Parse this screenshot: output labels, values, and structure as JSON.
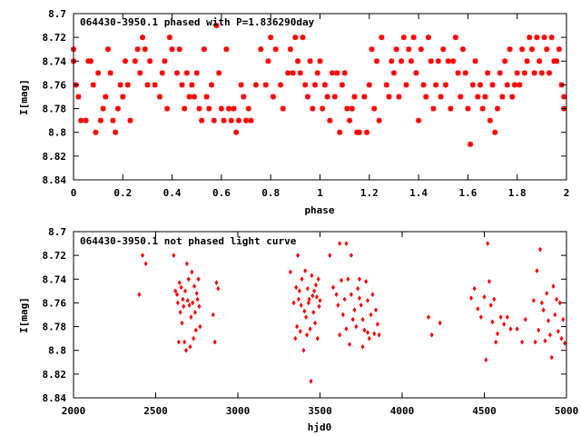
{
  "chart_data": [
    {
      "type": "scatter",
      "title": "064430-3950.1 phased with P=1.836290day",
      "xlabel": "phase",
      "ylabel": "I[mag]",
      "xlim": [
        0,
        2
      ],
      "ylim": [
        8.84,
        8.7
      ],
      "y_inverted": true,
      "xticks": [
        "0",
        "0.2",
        "0.4",
        "0.6",
        "0.8",
        "1",
        "1.2",
        "1.4",
        "1.6",
        "1.8",
        "2"
      ],
      "xtick_values": [
        0,
        0.2,
        0.4,
        0.6,
        0.8,
        1.0,
        1.2,
        1.4,
        1.6,
        1.8,
        2.0
      ],
      "yticks": [
        "8.7",
        "8.72",
        "8.74",
        "8.76",
        "8.78",
        "8.8",
        "8.82",
        "8.84"
      ],
      "ytick_values": [
        8.7,
        8.72,
        8.74,
        8.76,
        8.78,
        8.8,
        8.82,
        8.84
      ],
      "marker": "star",
      "color": "#ff0000",
      "points": [
        [
          0.0,
          8.73
        ],
        [
          0.0,
          8.74
        ],
        [
          0.01,
          8.76
        ],
        [
          0.02,
          8.77
        ],
        [
          0.03,
          8.79
        ],
        [
          0.05,
          8.79
        ],
        [
          0.06,
          8.74
        ],
        [
          0.07,
          8.74
        ],
        [
          0.08,
          8.76
        ],
        [
          0.09,
          8.8
        ],
        [
          0.1,
          8.75
        ],
        [
          0.11,
          8.79
        ],
        [
          0.12,
          8.78
        ],
        [
          0.13,
          8.77
        ],
        [
          0.14,
          8.73
        ],
        [
          0.15,
          8.75
        ],
        [
          0.16,
          8.79
        ],
        [
          0.17,
          8.8
        ],
        [
          0.18,
          8.78
        ],
        [
          0.19,
          8.76
        ],
        [
          0.2,
          8.77
        ],
        [
          0.21,
          8.74
        ],
        [
          0.22,
          8.76
        ],
        [
          0.23,
          8.79
        ],
        [
          0.25,
          8.74
        ],
        [
          0.26,
          8.73
        ],
        [
          0.27,
          8.75
        ],
        [
          0.28,
          8.72
        ],
        [
          0.29,
          8.73
        ],
        [
          0.3,
          8.76
        ],
        [
          0.31,
          8.74
        ],
        [
          0.33,
          8.76
        ],
        [
          0.35,
          8.77
        ],
        [
          0.36,
          8.75
        ],
        [
          0.37,
          8.74
        ],
        [
          0.38,
          8.78
        ],
        [
          0.39,
          8.72
        ],
        [
          0.4,
          8.73
        ],
        [
          0.42,
          8.75
        ],
        [
          0.43,
          8.73
        ],
        [
          0.44,
          8.76
        ],
        [
          0.45,
          8.78
        ],
        [
          0.46,
          8.75
        ],
        [
          0.47,
          8.77
        ],
        [
          0.48,
          8.76
        ],
        [
          0.49,
          8.77
        ],
        [
          0.5,
          8.75
        ],
        [
          0.51,
          8.78
        ],
        [
          0.52,
          8.79
        ],
        [
          0.53,
          8.73
        ],
        [
          0.54,
          8.77
        ],
        [
          0.55,
          8.78
        ],
        [
          0.56,
          8.76
        ],
        [
          0.57,
          8.79
        ],
        [
          0.58,
          8.71
        ],
        [
          0.59,
          8.75
        ],
        [
          0.6,
          8.78
        ],
        [
          0.61,
          8.79
        ],
        [
          0.62,
          8.73
        ],
        [
          0.63,
          8.78
        ],
        [
          0.64,
          8.79
        ],
        [
          0.65,
          8.78
        ],
        [
          0.66,
          8.8
        ],
        [
          0.67,
          8.79
        ],
        [
          0.68,
          8.76
        ],
        [
          0.69,
          8.77
        ],
        [
          0.7,
          8.79
        ],
        [
          0.71,
          8.78
        ],
        [
          0.72,
          8.79
        ],
        [
          0.74,
          8.76
        ],
        [
          0.76,
          8.73
        ],
        [
          0.78,
          8.76
        ],
        [
          0.79,
          8.74
        ],
        [
          0.8,
          8.72
        ],
        [
          0.81,
          8.77
        ],
        [
          0.82,
          8.73
        ],
        [
          0.84,
          8.76
        ],
        [
          0.85,
          8.78
        ],
        [
          0.87,
          8.75
        ],
        [
          0.88,
          8.73
        ],
        [
          0.89,
          8.75
        ],
        [
          0.9,
          8.72
        ],
        [
          0.91,
          8.74
        ],
        [
          0.92,
          8.75
        ],
        [
          0.93,
          8.72
        ],
        [
          0.94,
          8.76
        ],
        [
          0.95,
          8.77
        ],
        [
          0.96,
          8.74
        ],
        [
          0.97,
          8.78
        ],
        [
          0.98,
          8.76
        ],
        [
          0.99,
          8.75
        ],
        [
          1.0,
          8.74
        ],
        [
          1.01,
          8.78
        ],
        [
          1.02,
          8.76
        ],
        [
          1.03,
          8.77
        ],
        [
          1.04,
          8.79
        ],
        [
          1.05,
          8.75
        ],
        [
          1.06,
          8.77
        ],
        [
          1.07,
          8.75
        ],
        [
          1.08,
          8.8
        ],
        [
          1.09,
          8.76
        ],
        [
          1.1,
          8.75
        ],
        [
          1.11,
          8.78
        ],
        [
          1.12,
          8.79
        ],
        [
          1.13,
          8.78
        ],
        [
          1.14,
          8.77
        ],
        [
          1.15,
          8.8
        ],
        [
          1.16,
          8.8
        ],
        [
          1.18,
          8.77
        ],
        [
          1.19,
          8.8
        ],
        [
          1.2,
          8.76
        ],
        [
          1.21,
          8.73
        ],
        [
          1.22,
          8.78
        ],
        [
          1.23,
          8.74
        ],
        [
          1.24,
          8.79
        ],
        [
          1.25,
          8.72
        ],
        [
          1.27,
          8.76
        ],
        [
          1.28,
          8.77
        ],
        [
          1.29,
          8.74
        ],
        [
          1.3,
          8.75
        ],
        [
          1.31,
          8.73
        ],
        [
          1.32,
          8.77
        ],
        [
          1.33,
          8.74
        ],
        [
          1.34,
          8.72
        ],
        [
          1.35,
          8.76
        ],
        [
          1.36,
          8.73
        ],
        [
          1.37,
          8.74
        ],
        [
          1.38,
          8.72
        ],
        [
          1.39,
          8.75
        ],
        [
          1.4,
          8.79
        ],
        [
          1.41,
          8.73
        ],
        [
          1.42,
          8.76
        ],
        [
          1.43,
          8.77
        ],
        [
          1.44,
          8.72
        ],
        [
          1.45,
          8.74
        ],
        [
          1.46,
          8.78
        ],
        [
          1.47,
          8.76
        ],
        [
          1.48,
          8.74
        ],
        [
          1.49,
          8.77
        ],
        [
          1.5,
          8.73
        ],
        [
          1.51,
          8.76
        ],
        [
          1.52,
          8.74
        ],
        [
          1.53,
          8.78
        ],
        [
          1.54,
          8.74
        ],
        [
          1.55,
          8.72
        ],
        [
          1.56,
          8.75
        ],
        [
          1.57,
          8.77
        ],
        [
          1.58,
          8.73
        ],
        [
          1.59,
          8.75
        ],
        [
          1.6,
          8.78
        ],
        [
          1.61,
          8.81
        ],
        [
          1.62,
          8.76
        ],
        [
          1.63,
          8.74
        ],
        [
          1.64,
          8.77
        ],
        [
          1.65,
          8.76
        ],
        [
          1.66,
          8.78
        ],
        [
          1.67,
          8.77
        ],
        [
          1.68,
          8.75
        ],
        [
          1.69,
          8.79
        ],
        [
          1.7,
          8.76
        ],
        [
          1.71,
          8.8
        ],
        [
          1.72,
          8.78
        ],
        [
          1.73,
          8.75
        ],
        [
          1.74,
          8.77
        ],
        [
          1.75,
          8.74
        ],
        [
          1.76,
          8.76
        ],
        [
          1.77,
          8.73
        ],
        [
          1.78,
          8.77
        ],
        [
          1.79,
          8.76
        ],
        [
          1.8,
          8.75
        ],
        [
          1.81,
          8.76
        ],
        [
          1.82,
          8.73
        ],
        [
          1.83,
          8.75
        ],
        [
          1.84,
          8.74
        ],
        [
          1.85,
          8.72
        ],
        [
          1.86,
          8.73
        ],
        [
          1.87,
          8.75
        ],
        [
          1.88,
          8.72
        ],
        [
          1.89,
          8.74
        ],
        [
          1.9,
          8.75
        ],
        [
          1.91,
          8.72
        ],
        [
          1.92,
          8.73
        ],
        [
          1.93,
          8.75
        ],
        [
          1.94,
          8.72
        ],
        [
          1.95,
          8.74
        ],
        [
          1.96,
          8.74
        ],
        [
          1.97,
          8.73
        ],
        [
          1.98,
          8.76
        ],
        [
          1.99,
          8.77
        ],
        [
          1.99,
          8.78
        ]
      ]
    },
    {
      "type": "scatter",
      "title": "064430-3950.1 not phased light curve",
      "xlabel": "hjd0",
      "ylabel": "I[mag]",
      "xlim": [
        2000,
        5000
      ],
      "ylim": [
        8.84,
        8.7
      ],
      "y_inverted": true,
      "xticks": [
        "2000",
        "2500",
        "3000",
        "3500",
        "4000",
        "4500",
        "5000"
      ],
      "xtick_values": [
        2000,
        2500,
        3000,
        3500,
        4000,
        4500,
        5000
      ],
      "yticks": [
        "8.7",
        "8.72",
        "8.74",
        "8.76",
        "8.78",
        "8.8",
        "8.82",
        "8.84"
      ],
      "ytick_values": [
        8.7,
        8.72,
        8.74,
        8.76,
        8.78,
        8.8,
        8.82,
        8.84
      ],
      "marker": "diamond",
      "color": "#ff0000",
      "points": [
        [
          2400,
          8.753
        ],
        [
          2420,
          8.72
        ],
        [
          2440,
          8.727
        ],
        [
          2610,
          8.72
        ],
        [
          2620,
          8.75
        ],
        [
          2630,
          8.753
        ],
        [
          2635,
          8.76
        ],
        [
          2640,
          8.793
        ],
        [
          2645,
          8.743
        ],
        [
          2650,
          8.768
        ],
        [
          2655,
          8.747
        ],
        [
          2660,
          8.777
        ],
        [
          2665,
          8.757
        ],
        [
          2670,
          8.763
        ],
        [
          2675,
          8.793
        ],
        [
          2680,
          8.75
        ],
        [
          2685,
          8.8
        ],
        [
          2690,
          8.727
        ],
        [
          2695,
          8.758
        ],
        [
          2700,
          8.74
        ],
        [
          2705,
          8.762
        ],
        [
          2710,
          8.797
        ],
        [
          2715,
          8.772
        ],
        [
          2720,
          8.734
        ],
        [
          2725,
          8.76
        ],
        [
          2730,
          8.79
        ],
        [
          2735,
          8.746
        ],
        [
          2740,
          8.768
        ],
        [
          2745,
          8.783
        ],
        [
          2750,
          8.752
        ],
        [
          2755,
          8.757
        ],
        [
          2760,
          8.74
        ],
        [
          2765,
          8.763
        ],
        [
          2770,
          8.78
        ],
        [
          2850,
          8.77
        ],
        [
          2860,
          8.793
        ],
        [
          2870,
          8.743
        ],
        [
          2880,
          8.748
        ],
        [
          3320,
          8.734
        ],
        [
          3340,
          8.76
        ],
        [
          3350,
          8.79
        ],
        [
          3355,
          8.747
        ],
        [
          3360,
          8.78
        ],
        [
          3365,
          8.72
        ],
        [
          3370,
          8.757
        ],
        [
          3375,
          8.75
        ],
        [
          3380,
          8.784
        ],
        [
          3385,
          8.762
        ],
        [
          3390,
          8.74
        ],
        [
          3400,
          8.8
        ],
        [
          3405,
          8.767
        ],
        [
          3410,
          8.733
        ],
        [
          3415,
          8.772
        ],
        [
          3420,
          8.787
        ],
        [
          3425,
          8.748
        ],
        [
          3430,
          8.76
        ],
        [
          3435,
          8.757
        ],
        [
          3440,
          8.782
        ],
        [
          3445,
          8.826
        ],
        [
          3450,
          8.737
        ],
        [
          3455,
          8.754
        ],
        [
          3460,
          8.768
        ],
        [
          3465,
          8.75
        ],
        [
          3470,
          8.777
        ],
        [
          3475,
          8.745
        ],
        [
          3480,
          8.755
        ],
        [
          3485,
          8.79
        ],
        [
          3490,
          8.74
        ],
        [
          3495,
          8.763
        ],
        [
          3500,
          8.758
        ],
        [
          3560,
          8.72
        ],
        [
          3580,
          8.747
        ],
        [
          3600,
          8.753
        ],
        [
          3610,
          8.762
        ],
        [
          3620,
          8.787
        ],
        [
          3630,
          8.741
        ],
        [
          3640,
          8.77
        ],
        [
          3650,
          8.757
        ],
        [
          3660,
          8.782
        ],
        [
          3670,
          8.74
        ],
        [
          3680,
          8.795
        ],
        [
          3690,
          8.753
        ],
        [
          3700,
          8.774
        ],
        [
          3710,
          8.766
        ],
        [
          3720,
          8.78
        ],
        [
          3730,
          8.748
        ],
        [
          3740,
          8.756
        ],
        [
          3750,
          8.762
        ],
        [
          3760,
          8.774
        ],
        [
          3770,
          8.783
        ],
        [
          3780,
          8.742
        ],
        [
          3790,
          8.758
        ],
        [
          3800,
          8.79
        ],
        [
          3810,
          8.77
        ],
        [
          3820,
          8.753
        ],
        [
          3830,
          8.786
        ],
        [
          3840,
          8.766
        ],
        [
          3850,
          8.778
        ],
        [
          3860,
          8.787
        ],
        [
          3620,
          8.71
        ],
        [
          3660,
          8.71
        ],
        [
          3690,
          8.72
        ],
        [
          3740,
          8.74
        ],
        [
          3760,
          8.797
        ],
        [
          3790,
          8.785
        ],
        [
          4160,
          8.772
        ],
        [
          4180,
          8.787
        ],
        [
          4230,
          8.777
        ],
        [
          4420,
          8.756
        ],
        [
          4440,
          8.748
        ],
        [
          4460,
          8.765
        ],
        [
          4480,
          8.772
        ],
        [
          4500,
          8.755
        ],
        [
          4510,
          8.808
        ],
        [
          4520,
          8.71
        ],
        [
          4530,
          8.742
        ],
        [
          4540,
          8.762
        ],
        [
          4550,
          8.776
        ],
        [
          4560,
          8.757
        ],
        [
          4570,
          8.793
        ],
        [
          4580,
          8.786
        ],
        [
          4600,
          8.772
        ],
        [
          4620,
          8.778
        ],
        [
          4640,
          8.772
        ],
        [
          4660,
          8.782
        ],
        [
          4700,
          8.782
        ],
        [
          4730,
          8.793
        ],
        [
          4750,
          8.774
        ],
        [
          4800,
          8.758
        ],
        [
          4810,
          8.793
        ],
        [
          4820,
          8.733
        ],
        [
          4830,
          8.783
        ],
        [
          4840,
          8.715
        ],
        [
          4850,
          8.76
        ],
        [
          4860,
          8.766
        ],
        [
          4870,
          8.792
        ],
        [
          4880,
          8.752
        ],
        [
          4890,
          8.775
        ],
        [
          4900,
          8.787
        ],
        [
          4910,
          8.806
        ],
        [
          4920,
          8.746
        ],
        [
          4930,
          8.77
        ],
        [
          4940,
          8.757
        ],
        [
          4950,
          8.784
        ],
        [
          4960,
          8.76
        ],
        [
          4970,
          8.79
        ],
        [
          4980,
          8.774
        ],
        [
          4990,
          8.794
        ]
      ]
    }
  ]
}
